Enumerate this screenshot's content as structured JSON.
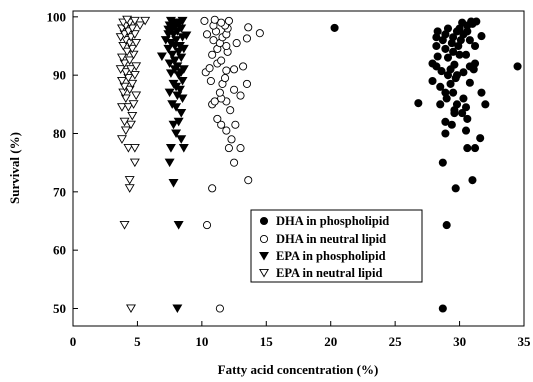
{
  "chart_data": {
    "type": "scatter",
    "title": "",
    "xlabel": "Fatty acid concentration (%)",
    "ylabel": "Survival (%)",
    "xlim": [
      0,
      35
    ],
    "ylim": [
      47,
      101
    ],
    "x_ticks": [
      "0",
      "5",
      "10",
      "15",
      "20",
      "25",
      "30",
      "35"
    ],
    "y_ticks": [
      "50",
      "60",
      "70",
      "80",
      "90",
      "100"
    ],
    "grid": false,
    "legend_position": "lower-right",
    "series": [
      {
        "name": "DHA in phospholipid",
        "marker": "filled-circle",
        "points": [
          [
            20.3,
            98.1
          ],
          [
            34.5,
            91.5
          ],
          [
            28.7,
            50.0
          ],
          [
            29.0,
            64.3
          ],
          [
            29.7,
            70.6
          ],
          [
            31.0,
            72.0
          ],
          [
            28.7,
            75.0
          ],
          [
            30.6,
            77.5
          ],
          [
            31.2,
            77.5
          ],
          [
            31.6,
            79.2
          ],
          [
            28.9,
            80.0
          ],
          [
            30.5,
            80.5
          ],
          [
            29.4,
            81.5
          ],
          [
            28.9,
            82.0
          ],
          [
            30.6,
            82.5
          ],
          [
            29.6,
            83.5
          ],
          [
            30.2,
            83.5
          ],
          [
            29.6,
            84.0
          ],
          [
            30.5,
            84.5
          ],
          [
            28.5,
            85.0
          ],
          [
            29.8,
            85.0
          ],
          [
            32.0,
            85.0
          ],
          [
            26.8,
            85.2
          ],
          [
            29.0,
            86.0
          ],
          [
            30.3,
            86.0
          ],
          [
            28.9,
            87.0
          ],
          [
            29.5,
            87.0
          ],
          [
            31.7,
            87.0
          ],
          [
            28.5,
            88.0
          ],
          [
            29.3,
            88.5
          ],
          [
            30.8,
            88.7
          ],
          [
            27.9,
            89.0
          ],
          [
            29.7,
            89.5
          ],
          [
            29.1,
            90.0
          ],
          [
            29.8,
            90.0
          ],
          [
            30.3,
            90.5
          ],
          [
            28.6,
            90.7
          ],
          [
            29.3,
            91.0
          ],
          [
            31.1,
            91.0
          ],
          [
            28.2,
            91.5
          ],
          [
            29.6,
            91.8
          ],
          [
            30.8,
            91.5
          ],
          [
            27.9,
            92.0
          ],
          [
            31.2,
            92.0
          ],
          [
            29.1,
            93.0
          ],
          [
            28.3,
            93.2
          ],
          [
            30.0,
            93.5
          ],
          [
            30.5,
            93.5
          ],
          [
            29.5,
            94.0
          ],
          [
            28.9,
            94.5
          ],
          [
            29.9,
            95.0
          ],
          [
            28.2,
            95.0
          ],
          [
            31.2,
            95.0
          ],
          [
            29.4,
            95.5
          ],
          [
            28.7,
            96.0
          ],
          [
            30.1,
            96.0
          ],
          [
            30.8,
            96.0
          ],
          [
            28.2,
            96.5
          ],
          [
            29.5,
            96.5
          ],
          [
            31.7,
            96.7
          ],
          [
            28.9,
            97.0
          ],
          [
            30.3,
            97.0
          ],
          [
            28.3,
            97.5
          ],
          [
            29.8,
            97.5
          ],
          [
            30.6,
            97.5
          ],
          [
            29.1,
            98.0
          ],
          [
            30.0,
            98.0
          ],
          [
            30.6,
            98.5
          ],
          [
            31.0,
            98.8
          ],
          [
            30.2,
            99.0
          ],
          [
            30.9,
            99.2
          ],
          [
            31.3,
            99.2
          ]
        ]
      },
      {
        "name": "DHA in neutral lipid",
        "marker": "open-circle",
        "points": [
          [
            11.4,
            50.0
          ],
          [
            10.4,
            64.3
          ],
          [
            10.8,
            70.6
          ],
          [
            13.6,
            72.0
          ],
          [
            12.5,
            75.0
          ],
          [
            13.0,
            77.5
          ],
          [
            12.1,
            77.5
          ],
          [
            12.3,
            79.0
          ],
          [
            11.9,
            80.5
          ],
          [
            12.6,
            81.5
          ],
          [
            11.5,
            81.5
          ],
          [
            11.2,
            82.5
          ],
          [
            12.2,
            84.0
          ],
          [
            10.8,
            85.0
          ],
          [
            11.0,
            85.5
          ],
          [
            11.9,
            85.5
          ],
          [
            11.5,
            86.0
          ],
          [
            13.0,
            86.5
          ],
          [
            11.4,
            87.0
          ],
          [
            12.5,
            87.5
          ],
          [
            11.6,
            88.5
          ],
          [
            13.5,
            88.5
          ],
          [
            10.7,
            89.0
          ],
          [
            11.8,
            89.5
          ],
          [
            10.3,
            90.5
          ],
          [
            11.9,
            90.8
          ],
          [
            12.5,
            91.0
          ],
          [
            10.6,
            91.2
          ],
          [
            13.2,
            91.5
          ],
          [
            11.2,
            92.0
          ],
          [
            11.5,
            92.5
          ],
          [
            10.8,
            93.5
          ],
          [
            12.0,
            94.0
          ],
          [
            11.2,
            94.5
          ],
          [
            11.9,
            95.0
          ],
          [
            11.4,
            95.5
          ],
          [
            12.7,
            95.5
          ],
          [
            10.9,
            96.0
          ],
          [
            13.5,
            96.3
          ],
          [
            11.6,
            96.5
          ],
          [
            10.4,
            97.0
          ],
          [
            11.9,
            97.0
          ],
          [
            14.5,
            97.2
          ],
          [
            11.1,
            97.5
          ],
          [
            12.0,
            98.0
          ],
          [
            13.6,
            98.2
          ],
          [
            10.9,
            98.5
          ],
          [
            11.8,
            98.5
          ],
          [
            11.5,
            99.0
          ],
          [
            10.2,
            99.3
          ],
          [
            12.1,
            99.3
          ],
          [
            11.0,
            99.5
          ]
        ]
      },
      {
        "name": "EPA in phospholipid",
        "marker": "filled-triangle-down",
        "points": [
          [
            8.1,
            50.0
          ],
          [
            8.2,
            64.3
          ],
          [
            7.8,
            71.5
          ],
          [
            7.5,
            75.0
          ],
          [
            7.6,
            77.5
          ],
          [
            8.6,
            77.5
          ],
          [
            8.4,
            79.0
          ],
          [
            8.0,
            80.0
          ],
          [
            7.8,
            81.5
          ],
          [
            8.2,
            82.0
          ],
          [
            8.4,
            83.5
          ],
          [
            8.0,
            84.5
          ],
          [
            7.7,
            85.0
          ],
          [
            8.5,
            86.0
          ],
          [
            8.1,
            86.5
          ],
          [
            7.5,
            87.0
          ],
          [
            8.3,
            87.5
          ],
          [
            8.0,
            88.0
          ],
          [
            7.8,
            88.5
          ],
          [
            8.5,
            89.0
          ],
          [
            8.2,
            90.0
          ],
          [
            7.6,
            90.3
          ],
          [
            8.4,
            90.5
          ],
          [
            7.9,
            91.0
          ],
          [
            8.6,
            91.0
          ],
          [
            8.1,
            91.5
          ],
          [
            7.5,
            92.0
          ],
          [
            7.9,
            92.5
          ],
          [
            8.4,
            93.0
          ],
          [
            6.9,
            93.2
          ],
          [
            7.7,
            93.5
          ],
          [
            8.2,
            94.0
          ],
          [
            7.4,
            94.5
          ],
          [
            8.6,
            94.5
          ],
          [
            7.9,
            95.0
          ],
          [
            8.3,
            95.0
          ],
          [
            7.6,
            95.5
          ],
          [
            7.2,
            96.0
          ],
          [
            8.0,
            96.0
          ],
          [
            8.5,
            96.5
          ],
          [
            7.4,
            97.0
          ],
          [
            7.8,
            97.0
          ],
          [
            8.1,
            97.5
          ],
          [
            7.7,
            98.0
          ],
          [
            8.4,
            98.0
          ],
          [
            7.5,
            98.5
          ],
          [
            8.0,
            98.5
          ],
          [
            7.8,
            99.0
          ],
          [
            8.3,
            99.0
          ],
          [
            7.6,
            99.3
          ],
          [
            8.5,
            99.3
          ],
          [
            7.4,
            97.8
          ],
          [
            8.8,
            96.8
          ]
        ]
      },
      {
        "name": "EPA in neutral lipid",
        "marker": "open-triangle-down",
        "points": [
          [
            4.5,
            50.0
          ],
          [
            4.0,
            64.3
          ],
          [
            4.4,
            70.6
          ],
          [
            4.4,
            72.0
          ],
          [
            4.8,
            75.0
          ],
          [
            4.3,
            77.5
          ],
          [
            4.8,
            77.5
          ],
          [
            3.8,
            79.0
          ],
          [
            4.1,
            80.5
          ],
          [
            4.5,
            81.5
          ],
          [
            4.0,
            82.0
          ],
          [
            4.6,
            83.0
          ],
          [
            3.8,
            84.5
          ],
          [
            4.3,
            84.5
          ],
          [
            4.7,
            85.0
          ],
          [
            4.1,
            86.0
          ],
          [
            4.9,
            86.5
          ],
          [
            3.9,
            87.0
          ],
          [
            4.4,
            87.5
          ],
          [
            4.0,
            88.0
          ],
          [
            4.6,
            88.5
          ],
          [
            3.8,
            89.0
          ],
          [
            4.3,
            89.5
          ],
          [
            4.8,
            90.0
          ],
          [
            4.1,
            90.5
          ],
          [
            3.7,
            91.0
          ],
          [
            4.5,
            91.0
          ],
          [
            4.9,
            91.5
          ],
          [
            4.0,
            92.0
          ],
          [
            4.4,
            92.5
          ],
          [
            3.8,
            93.0
          ],
          [
            4.7,
            93.5
          ],
          [
            4.2,
            94.0
          ],
          [
            4.6,
            94.5
          ],
          [
            3.9,
            95.0
          ],
          [
            4.4,
            95.5
          ],
          [
            4.9,
            95.5
          ],
          [
            4.1,
            96.0
          ],
          [
            3.7,
            96.5
          ],
          [
            4.5,
            96.5
          ],
          [
            4.0,
            97.0
          ],
          [
            4.8,
            97.0
          ],
          [
            4.3,
            97.5
          ],
          [
            3.8,
            98.0
          ],
          [
            4.6,
            98.0
          ],
          [
            4.1,
            98.5
          ],
          [
            5.2,
            98.5
          ],
          [
            3.9,
            99.0
          ],
          [
            4.4,
            99.0
          ],
          [
            4.8,
            99.3
          ],
          [
            5.6,
            99.3
          ],
          [
            4.2,
            99.5
          ]
        ]
      }
    ]
  }
}
